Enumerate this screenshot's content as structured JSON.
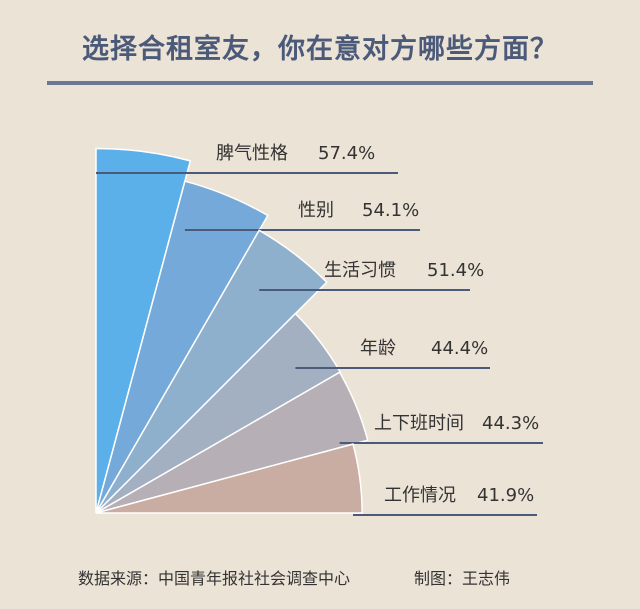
{
  "chart_data": {
    "type": "pie",
    "title": "选择合租室友，你在意对方哪些方面？",
    "value_format": "percent",
    "categories": [
      "脾气性格",
      "性别",
      "生活习惯",
      "年龄",
      "上下班时间",
      "工作情况"
    ],
    "values": [
      57.4,
      54.1,
      51.4,
      44.4,
      44.3,
      41.9
    ],
    "value_labels": [
      "57.4%",
      "54.1%",
      "51.4%",
      "44.4%",
      "44.3%",
      "41.9%"
    ],
    "colors": [
      "#5cb0ea",
      "#74a9d9",
      "#8fb0cc",
      "#a3b0c2",
      "#b6afb5",
      "#c9ada2"
    ],
    "label_line_color": "#4c5a7a",
    "legend": "none",
    "grid": false
  },
  "footer": {
    "source": "数据来源：中国青年报社社会调查中心",
    "credit": "制图：王志伟"
  }
}
